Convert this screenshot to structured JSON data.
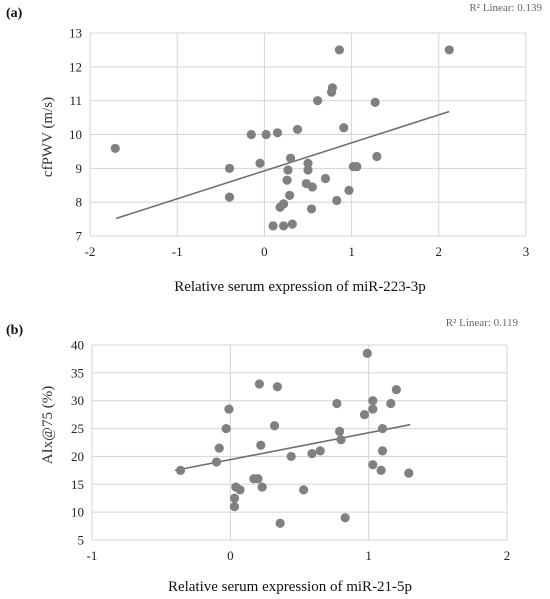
{
  "chart_data": [
    {
      "type": "scatter",
      "panel_label": "(a)",
      "r2_text": "R² Linear: 0.139",
      "xlabel": "Relative serum expression of miR-223-3p",
      "ylabel": "cfPWV (m/s)",
      "xlim": [
        -2,
        3
      ],
      "ylim": [
        7,
        13
      ],
      "xticks": [
        -2,
        -1,
        0,
        1,
        2,
        3
      ],
      "yticks": [
        7,
        8,
        9,
        10,
        11,
        12,
        13
      ],
      "grid": true,
      "marker_color": "#808080",
      "line_color": "#6e6e6e",
      "trendline": {
        "x": [
          -1.7,
          2.12
        ],
        "y": [
          7.52,
          10.68
        ]
      },
      "series": [
        {
          "points": [
            [
              -1.71,
              9.59
            ],
            [
              -0.4,
              9.0
            ],
            [
              -0.4,
              8.15
            ],
            [
              -0.15,
              10.0
            ],
            [
              -0.05,
              9.15
            ],
            [
              0.02,
              10.0
            ],
            [
              0.1,
              7.3
            ],
            [
              0.15,
              10.05
            ],
            [
              0.18,
              7.85
            ],
            [
              0.22,
              7.3
            ],
            [
              0.22,
              7.95
            ],
            [
              0.26,
              8.65
            ],
            [
              0.27,
              8.95
            ],
            [
              0.29,
              8.2
            ],
            [
              0.3,
              9.3
            ],
            [
              0.32,
              7.35
            ],
            [
              0.38,
              10.15
            ],
            [
              0.48,
              8.55
            ],
            [
              0.5,
              9.15
            ],
            [
              0.5,
              8.95
            ],
            [
              0.55,
              8.45
            ],
            [
              0.54,
              7.8
            ],
            [
              0.61,
              11.0
            ],
            [
              0.7,
              8.7
            ],
            [
              0.77,
              11.25
            ],
            [
              0.78,
              11.38
            ],
            [
              0.83,
              8.05
            ],
            [
              0.86,
              12.5
            ],
            [
              0.91,
              10.2
            ],
            [
              0.97,
              8.35
            ],
            [
              1.02,
              9.05
            ],
            [
              1.06,
              9.05
            ],
            [
              1.27,
              10.95
            ],
            [
              1.29,
              9.35
            ],
            [
              2.12,
              12.5
            ]
          ]
        }
      ]
    },
    {
      "type": "scatter",
      "panel_label": "(b)",
      "r2_text": "R² Linear: 0.119",
      "xlabel": "Relative serum expression of miR-21-5p",
      "ylabel": "AIx@75 (%)",
      "xlim": [
        -1,
        2
      ],
      "ylim": [
        5,
        40
      ],
      "xticks": [
        -1,
        0,
        1,
        2
      ],
      "yticks": [
        5,
        10,
        15,
        20,
        25,
        30,
        35,
        40
      ],
      "grid": true,
      "marker_color": "#808080",
      "line_color": "#6e6e6e",
      "trendline": {
        "x": [
          -0.4,
          1.3
        ],
        "y": [
          17.5,
          25.7
        ]
      },
      "series": [
        {
          "points": [
            [
              -0.36,
              17.5
            ],
            [
              -0.1,
              19.0
            ],
            [
              -0.08,
              21.5
            ],
            [
              -0.03,
              25.0
            ],
            [
              -0.01,
              28.5
            ],
            [
              0.03,
              11.0
            ],
            [
              0.03,
              12.5
            ],
            [
              0.04,
              14.5
            ],
            [
              0.07,
              14.0
            ],
            [
              0.17,
              16.0
            ],
            [
              0.2,
              16.0
            ],
            [
              0.21,
              33.0
            ],
            [
              0.22,
              22.0
            ],
            [
              0.23,
              14.5
            ],
            [
              0.32,
              25.5
            ],
            [
              0.34,
              32.5
            ],
            [
              0.36,
              8.0
            ],
            [
              0.44,
              20.0
            ],
            [
              0.53,
              14.0
            ],
            [
              0.59,
              20.5
            ],
            [
              0.65,
              21.0
            ],
            [
              0.77,
              29.5
            ],
            [
              0.79,
              24.5
            ],
            [
              0.8,
              23.0
            ],
            [
              0.83,
              9.0
            ],
            [
              0.97,
              27.5
            ],
            [
              0.99,
              38.5
            ],
            [
              1.03,
              30.0
            ],
            [
              1.03,
              18.5
            ],
            [
              1.03,
              28.5
            ],
            [
              1.09,
              17.5
            ],
            [
              1.1,
              25.0
            ],
            [
              1.1,
              21.0
            ],
            [
              1.16,
              29.5
            ],
            [
              1.2,
              32.0
            ],
            [
              1.29,
              17.0
            ]
          ]
        }
      ]
    }
  ]
}
